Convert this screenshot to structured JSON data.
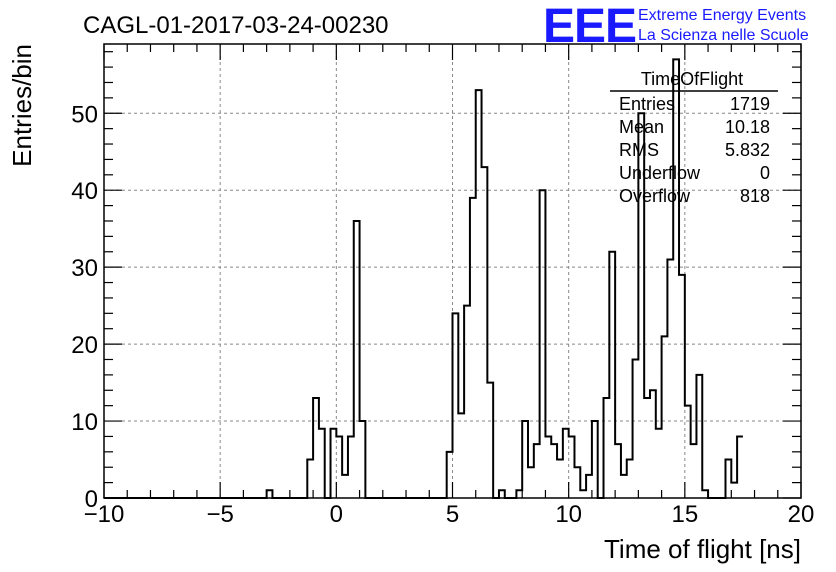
{
  "title": "CAGL-01-2017-03-24-00230",
  "brand": {
    "logo": "EEE",
    "line1": "Extreme Energy Events",
    "line2": "La Scienza nelle Scuole",
    "color": "#1a1aff"
  },
  "stats": {
    "name": "TimeOfFlight",
    "rows": [
      {
        "label": "Entries",
        "value": "1719"
      },
      {
        "label": "Mean",
        "value": "10.18"
      },
      {
        "label": "RMS",
        "value": "5.832"
      },
      {
        "label": "Underflow",
        "value": "0"
      },
      {
        "label": "Overflow",
        "value": "818"
      }
    ]
  },
  "chart_data": {
    "type": "histogram",
    "xlabel": "Time of flight [ns]",
    "ylabel": "Entries/bin",
    "xlim": [
      -10,
      20
    ],
    "ylim": [
      0,
      59
    ],
    "xticks": [
      -10,
      -5,
      0,
      5,
      10,
      15,
      20
    ],
    "yticks": [
      0,
      10,
      20,
      30,
      40,
      50
    ],
    "grid": true,
    "bin_width": 0.25,
    "bin_start": -10,
    "values": [
      0,
      0,
      0,
      0,
      0,
      0,
      0,
      0,
      0,
      0,
      0,
      0,
      0,
      0,
      0,
      0,
      0,
      0,
      0,
      0,
      0,
      0,
      0,
      0,
      0,
      0,
      0,
      0,
      1,
      0,
      0,
      0,
      0,
      0,
      0,
      5,
      13,
      9,
      0,
      9,
      8,
      3,
      8,
      36,
      10,
      0,
      0,
      0,
      0,
      0,
      0,
      0,
      0,
      0,
      0,
      0,
      0,
      0,
      0,
      6,
      24,
      11,
      25,
      39,
      53,
      43,
      15,
      0,
      1,
      0,
      0,
      1,
      10,
      4,
      7,
      40,
      8,
      7,
      5,
      9,
      8,
      4,
      1,
      3,
      10,
      0,
      13,
      32,
      7,
      3,
      5,
      18,
      50,
      13,
      14,
      9,
      21,
      31,
      57,
      29,
      12,
      7,
      16,
      1,
      0,
      0,
      0,
      5,
      2,
      8
    ]
  }
}
